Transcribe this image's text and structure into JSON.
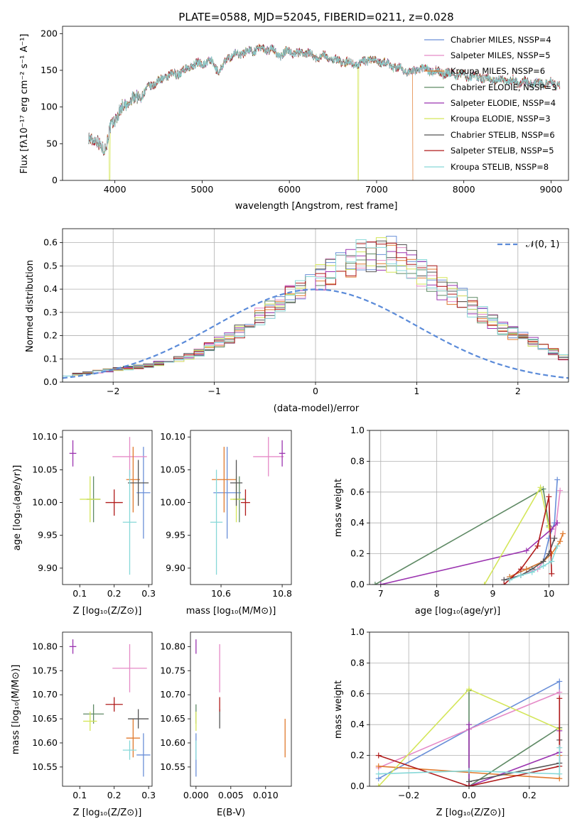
{
  "colors": [
    "#6a8fd8",
    "#e58ac7",
    "#e07a2e",
    "#5f8a65",
    "#9b34b0",
    "#d4e65a",
    "#555555",
    "#b01b1b",
    "#86d8d8"
  ],
  "spectrum": {
    "title": "PLATE=0588, MJD=52045, FIBERID=0211, z=0.028",
    "xlabel": "wavelength [Angstrom, rest frame]",
    "ylabel": "Flux [fλ10⁻¹⁷ erg cm⁻² s⁻¹ A⁻¹]",
    "legend": [
      "Chabrier MILES, NSSP=4",
      "Salpeter MILES, NSSP=5",
      "Kroupa MILES, NSSP=6",
      "Chabrier ELODIE, NSSP=3",
      "Salpeter ELODIE, NSSP=4",
      "Kroupa ELODIE, NSSP=3",
      "Chabrier STELIB, NSSP=6",
      "Salpeter STELIB, NSSP=5",
      "Kroupa STELIB, NSSP=8"
    ]
  },
  "histogram": {
    "xlabel": "(data-model)/error",
    "ylabel": "Normed distribution",
    "legend_label": "𝒩(0, 1)"
  },
  "panels": {
    "age_vs_z": {
      "xlabel": "Z [log₁₀(Z/Z⊙)]",
      "ylabel": "age  [log₁₀(age/yr)]"
    },
    "age_vs_mass": {
      "xlabel": "mass [log₁₀(M/M⊙)]"
    },
    "weight_vs_age": {
      "xlabel": "age  [log₁₀(age/yr)]",
      "ylabel": "mass weight"
    },
    "mass_vs_z": {
      "xlabel": "Z [log₁₀(Z/Z⊙)]",
      "ylabel": "mass [log₁₀(M/M⊙)]"
    },
    "mass_vs_ebv": {
      "xlabel": "E(B-V)"
    },
    "weight_vs_z": {
      "xlabel": "Z [log₁₀(Z/Z⊙)]",
      "ylabel": "mass weight"
    }
  },
  "chart_data": [
    {
      "type": "line",
      "name": "spectrum",
      "title": "PLATE=0588, MJD=52045, FIBERID=0211, z=0.028",
      "xlim": [
        3400,
        9200
      ],
      "ylim": [
        0,
        210
      ],
      "xticks": [
        4000,
        5000,
        6000,
        7000,
        8000,
        9000
      ],
      "yticks": [
        0,
        50,
        100,
        150,
        200
      ],
      "continuum": [
        [
          3700,
          62
        ],
        [
          3800,
          50
        ],
        [
          3900,
          45
        ],
        [
          3950,
          70
        ],
        [
          4000,
          85
        ],
        [
          4100,
          100
        ],
        [
          4200,
          110
        ],
        [
          4300,
          115
        ],
        [
          4400,
          128
        ],
        [
          4500,
          135
        ],
        [
          4600,
          142
        ],
        [
          4700,
          145
        ],
        [
          4800,
          150
        ],
        [
          4900,
          158
        ],
        [
          5000,
          160
        ],
        [
          5100,
          162
        ],
        [
          5200,
          148
        ],
        [
          5300,
          168
        ],
        [
          5400,
          172
        ],
        [
          5500,
          175
        ],
        [
          5600,
          178
        ],
        [
          5700,
          180
        ],
        [
          5800,
          178
        ],
        [
          5900,
          170
        ],
        [
          6000,
          177
        ],
        [
          6100,
          172
        ],
        [
          6200,
          175
        ],
        [
          6300,
          168
        ],
        [
          6400,
          170
        ],
        [
          6500,
          165
        ],
        [
          6600,
          162
        ],
        [
          6700,
          160
        ],
        [
          6800,
          158
        ],
        [
          6900,
          165
        ],
        [
          7000,
          162
        ],
        [
          7100,
          160
        ],
        [
          7200,
          155
        ],
        [
          7300,
          150
        ],
        [
          7400,
          148
        ],
        [
          7500,
          152
        ],
        [
          7600,
          150
        ],
        [
          7700,
          148
        ],
        [
          7800,
          146
        ],
        [
          7900,
          145
        ],
        [
          8000,
          143
        ],
        [
          8100,
          142
        ],
        [
          8200,
          140
        ],
        [
          8300,
          138
        ],
        [
          8400,
          137
        ],
        [
          8500,
          136
        ],
        [
          8600,
          135
        ],
        [
          8700,
          134
        ],
        [
          8800,
          133
        ],
        [
          8900,
          132
        ],
        [
          9000,
          131
        ],
        [
          9100,
          130
        ]
      ],
      "drops": [
        {
          "x": 3940,
          "series": 5
        },
        {
          "x": 6790,
          "series": 5
        },
        {
          "x": 7420,
          "series": 2
        }
      ],
      "legend_position": "upper-right"
    },
    {
      "type": "bar",
      "name": "residual-histogram",
      "xlim": [
        -2.5,
        2.5
      ],
      "ylim": [
        0,
        0.66
      ],
      "xticks": [
        -2,
        -1,
        0,
        1,
        2
      ],
      "yticks": [
        0,
        0.1,
        0.2,
        0.3,
        0.4,
        0.5,
        0.6
      ],
      "bin_width": 0.1,
      "base_density": [
        0.03,
        0.035,
        0.04,
        0.045,
        0.05,
        0.055,
        0.06,
        0.065,
        0.07,
        0.08,
        0.09,
        0.1,
        0.11,
        0.13,
        0.15,
        0.17,
        0.19,
        0.22,
        0.25,
        0.28,
        0.31,
        0.34,
        0.37,
        0.4,
        0.43,
        0.46,
        0.48,
        0.5,
        0.52,
        0.54,
        0.55,
        0.55,
        0.54,
        0.52,
        0.5,
        0.47,
        0.44,
        0.41,
        0.38,
        0.35,
        0.32,
        0.29,
        0.26,
        0.23,
        0.21,
        0.19,
        0.17,
        0.15,
        0.13,
        0.11
      ],
      "normal_curve": {
        "mean": 0,
        "sigma": 1
      },
      "grid": true,
      "legend_position": "upper-right"
    },
    {
      "type": "scatter",
      "name": "age-vs-z",
      "xlim": [
        0.05,
        0.31
      ],
      "ylim": [
        9.875,
        10.11
      ],
      "xticks": [
        0.1,
        0.2,
        0.3
      ],
      "yticks": [
        9.9,
        9.95,
        10.0,
        10.05,
        10.1
      ],
      "points": [
        {
          "x": 0.285,
          "y": 10.015,
          "xerr": 0.02,
          "yerr": 0.07
        },
        {
          "x": 0.245,
          "y": 10.07,
          "xerr": 0.05,
          "yerr": 0.03
        },
        {
          "x": 0.255,
          "y": 10.035,
          "xerr": 0.02,
          "yerr": 0.05
        },
        {
          "x": 0.14,
          "y": 10.005,
          "xerr": 0.02,
          "yerr": 0.035
        },
        {
          "x": 0.08,
          "y": 10.075,
          "xerr": 0.01,
          "yerr": 0.02
        },
        {
          "x": 0.13,
          "y": 10.005,
          "xerr": 0.03,
          "yerr": 0.035
        },
        {
          "x": 0.27,
          "y": 10.03,
          "xerr": 0.03,
          "yerr": 0.035
        },
        {
          "x": 0.2,
          "y": 10.0,
          "xerr": 0.025,
          "yerr": 0.02
        },
        {
          "x": 0.245,
          "y": 9.97,
          "xerr": 0.02,
          "yerr": 0.08
        }
      ]
    },
    {
      "type": "scatter",
      "name": "age-vs-mass",
      "xlim": [
        10.5,
        10.83
      ],
      "ylim": [
        9.875,
        10.11
      ],
      "xticks": [
        10.6,
        10.8
      ],
      "yticks": [
        9.9,
        9.95,
        10.0,
        10.05,
        10.1
      ],
      "points": [
        {
          "x": 10.62,
          "y": 10.015,
          "xerr": 0.045,
          "yerr": 0.07
        },
        {
          "x": 10.755,
          "y": 10.07,
          "xerr": 0.05,
          "yerr": 0.03
        },
        {
          "x": 10.61,
          "y": 10.035,
          "xerr": 0.04,
          "yerr": 0.05
        },
        {
          "x": 10.66,
          "y": 10.005,
          "xerr": 0.02,
          "yerr": 0.035
        },
        {
          "x": 10.8,
          "y": 10.075,
          "xerr": 0.01,
          "yerr": 0.02
        },
        {
          "x": 10.65,
          "y": 10.005,
          "xerr": 0.02,
          "yerr": 0.035
        },
        {
          "x": 10.65,
          "y": 10.03,
          "xerr": 0.02,
          "yerr": 0.035
        },
        {
          "x": 10.68,
          "y": 10.0,
          "xerr": 0.015,
          "yerr": 0.02
        },
        {
          "x": 10.585,
          "y": 9.97,
          "xerr": 0.02,
          "yerr": 0.08
        }
      ]
    },
    {
      "type": "line",
      "name": "weight-vs-age",
      "xlim": [
        6.8,
        10.35
      ],
      "ylim": [
        0,
        1.0
      ],
      "xticks": [
        7,
        8,
        9,
        10
      ],
      "yticks": [
        0,
        0.2,
        0.4,
        0.6,
        0.8,
        1.0
      ],
      "series": [
        {
          "x": [
            9.3,
            9.6,
            9.9,
            10.0,
            10.1,
            10.15
          ],
          "y": [
            0.05,
            0.1,
            0.15,
            0.3,
            0.4,
            0.68
          ]
        },
        {
          "x": [
            9.2,
            9.5,
            9.8,
            10.0,
            10.1,
            10.2
          ],
          "y": [
            0.03,
            0.06,
            0.1,
            0.2,
            0.3,
            0.61
          ]
        },
        {
          "x": [
            9.3,
            9.6,
            9.9,
            10.05,
            10.2,
            10.25
          ],
          "y": [
            0.05,
            0.1,
            0.15,
            0.2,
            0.28,
            0.33
          ]
        },
        {
          "x": [
            6.9,
            9.9,
            10.0
          ],
          "y": [
            0.0,
            0.62,
            0.38
          ]
        },
        {
          "x": [
            7.0,
            9.6,
            10.05,
            10.15
          ],
          "y": [
            0.0,
            0.22,
            0.36,
            0.4
          ]
        },
        {
          "x": [
            8.85,
            9.85,
            10.0
          ],
          "y": [
            0.0,
            0.63,
            0.37
          ]
        },
        {
          "x": [
            9.2,
            9.5,
            9.7,
            9.9,
            10.0,
            10.1
          ],
          "y": [
            0.03,
            0.06,
            0.1,
            0.15,
            0.2,
            0.3
          ]
        },
        {
          "x": [
            9.2,
            9.5,
            9.8,
            10.0,
            10.05
          ],
          "y": [
            0.0,
            0.1,
            0.25,
            0.57,
            0.07
          ]
        },
        {
          "x": [
            9.3,
            9.5,
            9.7,
            9.9,
            10.05,
            10.15
          ],
          "y": [
            0.03,
            0.06,
            0.08,
            0.12,
            0.15,
            0.25
          ]
        }
      ]
    },
    {
      "type": "scatter",
      "name": "mass-vs-z",
      "xlim": [
        0.05,
        0.31
      ],
      "ylim": [
        10.51,
        10.83
      ],
      "xticks": [
        0.1,
        0.2,
        0.3
      ],
      "yticks": [
        10.55,
        10.6,
        10.65,
        10.7,
        10.75,
        10.8
      ],
      "points": [
        {
          "x": 0.285,
          "y": 10.575,
          "xerr": 0.02,
          "yerr": 0.045
        },
        {
          "x": 0.245,
          "y": 10.755,
          "xerr": 0.05,
          "yerr": 0.05
        },
        {
          "x": 0.255,
          "y": 10.61,
          "xerr": 0.02,
          "yerr": 0.04
        },
        {
          "x": 0.14,
          "y": 10.66,
          "xerr": 0.03,
          "yerr": 0.02
        },
        {
          "x": 0.08,
          "y": 10.8,
          "xerr": 0.01,
          "yerr": 0.015
        },
        {
          "x": 0.13,
          "y": 10.645,
          "xerr": 0.02,
          "yerr": 0.02
        },
        {
          "x": 0.27,
          "y": 10.65,
          "xerr": 0.03,
          "yerr": 0.02
        },
        {
          "x": 0.2,
          "y": 10.68,
          "xerr": 0.025,
          "yerr": 0.015
        },
        {
          "x": 0.245,
          "y": 10.585,
          "xerr": 0.02,
          "yerr": 0.02
        }
      ]
    },
    {
      "type": "scatter",
      "name": "mass-vs-ebv",
      "xlim": [
        -0.0008,
        0.0137
      ],
      "ylim": [
        10.51,
        10.83
      ],
      "xticks": [
        0.0,
        0.005,
        0.01
      ],
      "yticks": [
        10.55,
        10.6,
        10.65,
        10.7,
        10.75,
        10.8
      ],
      "points": [
        {
          "x": 0.0,
          "y": 10.575,
          "xerr": 0,
          "yerr": 0.045
        },
        {
          "x": 0.0034,
          "y": 10.755,
          "xerr": 0,
          "yerr": 0.05
        },
        {
          "x": 0.0128,
          "y": 10.61,
          "xerr": 0,
          "yerr": 0.04
        },
        {
          "x": 0.0,
          "y": 10.66,
          "xerr": 0,
          "yerr": 0.02
        },
        {
          "x": 0.0,
          "y": 10.8,
          "xerr": 0,
          "yerr": 0.015
        },
        {
          "x": 0.0,
          "y": 10.645,
          "xerr": 0,
          "yerr": 0.02
        },
        {
          "x": 0.0034,
          "y": 10.65,
          "xerr": 0,
          "yerr": 0.02
        },
        {
          "x": 0.0034,
          "y": 10.68,
          "xerr": 0,
          "yerr": 0.015
        },
        {
          "x": 0.0,
          "y": 10.585,
          "xerr": 0,
          "yerr": 0.02
        }
      ]
    },
    {
      "type": "line",
      "name": "weight-vs-z",
      "xlim": [
        -0.33,
        0.33
      ],
      "ylim": [
        0,
        1.0
      ],
      "xticks": [
        -0.2,
        0.0,
        0.2
      ],
      "yticks": [
        0,
        0.2,
        0.4,
        0.6,
        0.8,
        1.0
      ],
      "series": [
        {
          "x": [
            -0.3,
            0.0,
            0.3,
            0.3
          ],
          "y": [
            0.05,
            0.37,
            0.68,
            0.15
          ]
        },
        {
          "x": [
            -0.3,
            0.0,
            0.3,
            0.3
          ],
          "y": [
            0.12,
            0.37,
            0.61,
            0.3
          ]
        },
        {
          "x": [
            -0.3,
            0.0,
            0.3,
            0.3
          ],
          "y": [
            0.13,
            0.09,
            0.05,
            0.2
          ]
        },
        {
          "x": [
            0.0,
            0.0,
            0.3
          ],
          "y": [
            0.62,
            0.0,
            0.38
          ]
        },
        {
          "x": [
            0.0,
            0.0,
            0.3,
            0.3
          ],
          "y": [
            0.4,
            0.0,
            0.22,
            0.36
          ]
        },
        {
          "x": [
            -0.3,
            0.0,
            0.3
          ],
          "y": [
            0.0,
            0.63,
            0.37
          ]
        },
        {
          "x": [
            0.0,
            0.3,
            0.3
          ],
          "y": [
            0.03,
            0.15,
            0.3
          ]
        },
        {
          "x": [
            -0.3,
            0.0,
            0.3,
            0.3
          ],
          "y": [
            0.2,
            0.0,
            0.13,
            0.57
          ]
        },
        {
          "x": [
            -0.3,
            0.0,
            0.3,
            0.3
          ],
          "y": [
            0.08,
            0.1,
            0.08,
            0.25
          ]
        }
      ]
    }
  ]
}
